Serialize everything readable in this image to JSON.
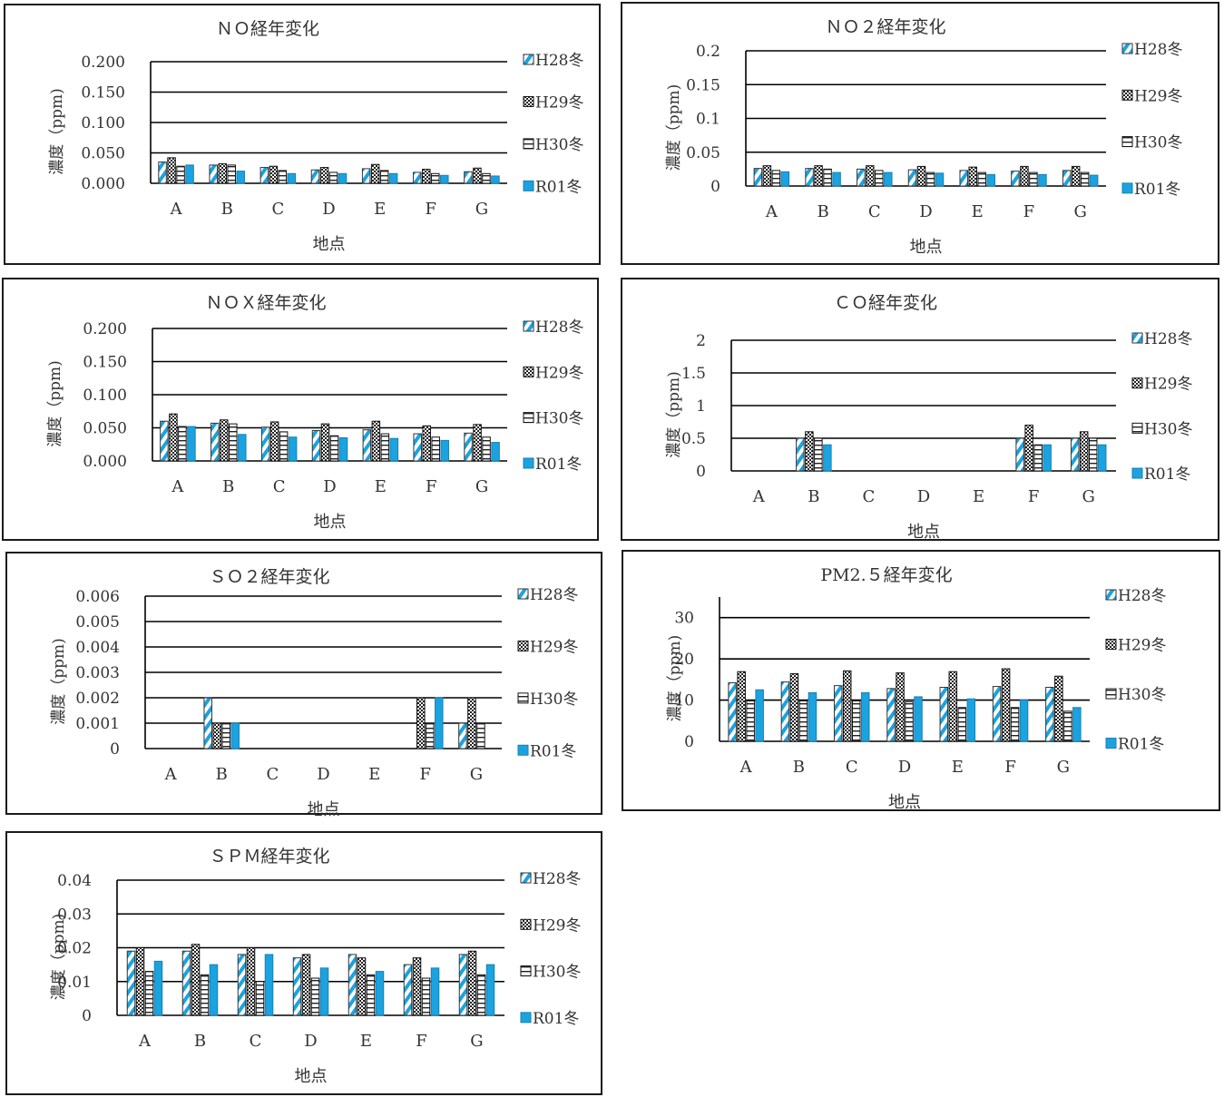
{
  "colors": {
    "accent": "#1aa3e0",
    "axis": "#000000",
    "text": "#333333"
  },
  "chart_data": [
    {
      "id": "no",
      "type": "bar",
      "title": "ＮＯ経年変化",
      "ylabel": "濃度（ppm)",
      "xlabel": "地点",
      "categories": [
        "A",
        "B",
        "C",
        "D",
        "E",
        "F",
        "G"
      ],
      "ylim": [
        0,
        0.2
      ],
      "yticks": [
        "0.200",
        "0.150",
        "0.100",
        "0.050",
        "0.000"
      ],
      "ytick_values": [
        0.2,
        0.15,
        0.1,
        0.05,
        0
      ],
      "legend_position": "right",
      "series": [
        {
          "name": "H28冬",
          "values": [
            0.035,
            0.03,
            0.026,
            0.022,
            0.024,
            0.018,
            0.019
          ]
        },
        {
          "name": "H29冬",
          "values": [
            0.042,
            0.032,
            0.028,
            0.026,
            0.031,
            0.023,
            0.025
          ]
        },
        {
          "name": "H30冬",
          "values": [
            0.028,
            0.03,
            0.021,
            0.018,
            0.021,
            0.016,
            0.016
          ]
        },
        {
          "name": "R01冬",
          "values": [
            0.03,
            0.02,
            0.016,
            0.016,
            0.016,
            0.013,
            0.012
          ]
        }
      ]
    },
    {
      "id": "no2",
      "type": "bar",
      "title": "ＮＯ２経年変化",
      "ylabel": "濃度（ppm)",
      "xlabel": "地点",
      "categories": [
        "A",
        "B",
        "C",
        "D",
        "E",
        "F",
        "G"
      ],
      "ylim": [
        0,
        0.2
      ],
      "yticks": [
        "0.2",
        "0.15",
        "0.1",
        "0.05",
        "0"
      ],
      "ytick_values": [
        0.2,
        0.15,
        0.1,
        0.05,
        0
      ],
      "legend_position": "right",
      "series": [
        {
          "name": "H28冬",
          "values": [
            0.026,
            0.026,
            0.025,
            0.024,
            0.023,
            0.022,
            0.023
          ]
        },
        {
          "name": "H29冬",
          "values": [
            0.03,
            0.03,
            0.03,
            0.029,
            0.028,
            0.029,
            0.029
          ]
        },
        {
          "name": "H30冬",
          "values": [
            0.023,
            0.025,
            0.023,
            0.02,
            0.02,
            0.02,
            0.02
          ]
        },
        {
          "name": "R01冬",
          "values": [
            0.021,
            0.02,
            0.02,
            0.019,
            0.017,
            0.017,
            0.016
          ]
        }
      ]
    },
    {
      "id": "nox",
      "type": "bar",
      "title": "ＮＯＸ経年変化",
      "ylabel": "濃度（ppm)",
      "xlabel": "地点",
      "categories": [
        "A",
        "B",
        "C",
        "D",
        "E",
        "F",
        "G"
      ],
      "ylim": [
        0,
        0.2
      ],
      "yticks": [
        "0.200",
        "0.150",
        "0.100",
        "0.050",
        "0.000"
      ],
      "ytick_values": [
        0.2,
        0.15,
        0.1,
        0.05,
        0
      ],
      "legend_position": "right",
      "series": [
        {
          "name": "H28冬",
          "values": [
            0.06,
            0.057,
            0.051,
            0.046,
            0.047,
            0.041,
            0.042
          ]
        },
        {
          "name": "H29冬",
          "values": [
            0.071,
            0.062,
            0.059,
            0.056,
            0.06,
            0.053,
            0.055
          ]
        },
        {
          "name": "H30冬",
          "values": [
            0.052,
            0.056,
            0.044,
            0.038,
            0.041,
            0.036,
            0.036
          ]
        },
        {
          "name": "R01冬",
          "values": [
            0.052,
            0.04,
            0.036,
            0.035,
            0.034,
            0.031,
            0.028
          ]
        }
      ]
    },
    {
      "id": "co",
      "type": "bar",
      "title": "ＣＯ経年変化",
      "ylabel": "濃度（ppm)",
      "xlabel": "地点",
      "categories": [
        "A",
        "B",
        "C",
        "D",
        "E",
        "F",
        "G"
      ],
      "ylim": [
        0,
        2
      ],
      "yticks": [
        "2",
        "1.5",
        "1",
        "0.5",
        "0"
      ],
      "ytick_values": [
        2,
        1.5,
        1,
        0.5,
        0
      ],
      "legend_position": "right",
      "series": [
        {
          "name": "H28冬",
          "values": [
            0,
            0.5,
            0,
            0,
            0,
            0.5,
            0.5
          ]
        },
        {
          "name": "H29冬",
          "values": [
            0,
            0.6,
            0,
            0,
            0,
            0.7,
            0.6
          ]
        },
        {
          "name": "H30冬",
          "values": [
            0,
            0.5,
            0,
            0,
            0,
            0.4,
            0.5
          ]
        },
        {
          "name": "R01冬",
          "values": [
            0,
            0.4,
            0,
            0,
            0,
            0.4,
            0.4
          ]
        }
      ]
    },
    {
      "id": "so2",
      "type": "bar",
      "title": "ＳＯ２経年変化",
      "ylabel": "濃度（ppm)",
      "xlabel": "地点",
      "categories": [
        "A",
        "B",
        "C",
        "D",
        "E",
        "F",
        "G"
      ],
      "ylim": [
        0,
        0.006
      ],
      "yticks": [
        "0.006",
        "0.005",
        "0.004",
        "0.003",
        "0.002",
        "0.001",
        "0"
      ],
      "ytick_values": [
        0.006,
        0.005,
        0.004,
        0.003,
        0.002,
        0.001,
        0
      ],
      "legend_position": "right",
      "series": [
        {
          "name": "H28冬",
          "values": [
            0,
            0.002,
            0,
            0,
            0,
            0,
            0.001
          ]
        },
        {
          "name": "H29冬",
          "values": [
            0,
            0.001,
            0,
            0,
            0,
            0.002,
            0.002
          ]
        },
        {
          "name": "H30冬",
          "values": [
            0,
            0.001,
            0,
            0,
            0,
            0.001,
            0.001
          ]
        },
        {
          "name": "R01冬",
          "values": [
            0,
            0.001,
            0,
            0,
            0,
            0.002,
            0
          ]
        }
      ]
    },
    {
      "id": "pm25",
      "type": "bar",
      "title": "PM2.５経年変化",
      "ylabel": "濃度（ppm)",
      "xlabel": "地点",
      "categories": [
        "A",
        "B",
        "C",
        "D",
        "E",
        "F",
        "G"
      ],
      "ylim": [
        0,
        35
      ],
      "yticks": [
        "30",
        "20",
        "10",
        "0"
      ],
      "ytick_values": [
        30,
        20,
        10,
        0
      ],
      "legend_position": "right",
      "series": [
        {
          "name": "H28冬",
          "values": [
            14.2,
            14.4,
            13.5,
            12.8,
            13.1,
            13.3,
            13.1
          ]
        },
        {
          "name": "H29冬",
          "values": [
            16.9,
            16.4,
            17.1,
            16.6,
            16.9,
            17.6,
            15.8
          ]
        },
        {
          "name": "H30冬",
          "values": [
            9.8,
            9.8,
            9.8,
            9.6,
            8.2,
            8.2,
            7.3
          ]
        },
        {
          "name": "R01冬",
          "values": [
            12.5,
            11.8,
            11.8,
            10.8,
            10.3,
            10.0,
            8.2
          ]
        }
      ]
    },
    {
      "id": "spm",
      "type": "bar",
      "title": "ＳＰＭ経年変化",
      "ylabel": "濃度（ppm)",
      "xlabel": "地点",
      "categories": [
        "A",
        "B",
        "C",
        "D",
        "E",
        "F",
        "G"
      ],
      "ylim": [
        0,
        0.04
      ],
      "yticks": [
        "0.04",
        "0.03",
        "0.02",
        "0.01",
        "0"
      ],
      "ytick_values": [
        0.04,
        0.03,
        0.02,
        0.01,
        0
      ],
      "legend_position": "right",
      "series": [
        {
          "name": "H28冬",
          "values": [
            0.019,
            0.019,
            0.018,
            0.017,
            0.018,
            0.015,
            0.018
          ]
        },
        {
          "name": "H29冬",
          "values": [
            0.02,
            0.021,
            0.02,
            0.018,
            0.017,
            0.017,
            0.019
          ]
        },
        {
          "name": "H30冬",
          "values": [
            0.013,
            0.012,
            0.01,
            0.011,
            0.012,
            0.011,
            0.012
          ]
        },
        {
          "name": "R01冬",
          "values": [
            0.016,
            0.015,
            0.018,
            0.014,
            0.013,
            0.014,
            0.015
          ]
        }
      ]
    }
  ]
}
